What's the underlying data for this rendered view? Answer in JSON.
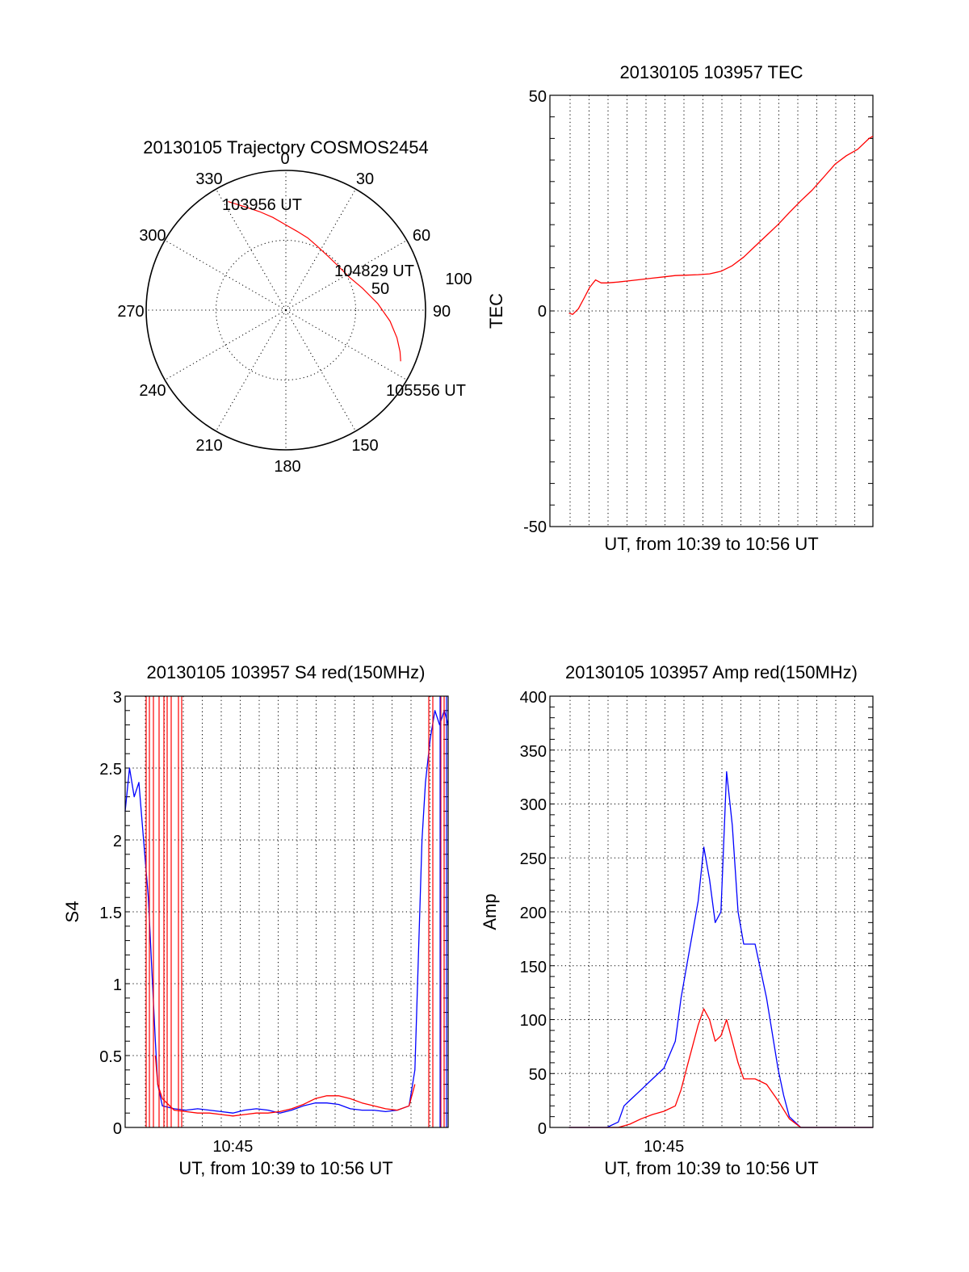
{
  "chart_data": [
    {
      "id": "trajectory",
      "type": "polar",
      "title": "20130105 Trajectory COSMOS2454",
      "azimuth_labels": [
        "0",
        "30",
        "60",
        "90",
        "150",
        "180",
        "210",
        "240",
        "270",
        "300",
        "330"
      ],
      "ring_labels": [
        "50",
        "100"
      ],
      "point_labels": [
        "103956 UT",
        "104829 UT",
        "105556 UT"
      ],
      "series": [
        {
          "color": "#ff0000",
          "points": [
            [
              332,
              88
            ],
            [
              338,
              80
            ],
            [
              345,
              73
            ],
            [
              352,
              67
            ],
            [
              0,
              61
            ],
            [
              8,
              57
            ],
            [
              17,
              54
            ],
            [
              26,
              51
            ],
            [
              38,
              49
            ],
            [
              50,
              49
            ],
            [
              62,
              51
            ],
            [
              74,
              57
            ],
            [
              86,
              66
            ],
            [
              96,
              75
            ],
            [
              104,
              82
            ],
            [
              110,
              87
            ],
            [
              114,
              90
            ]
          ]
        }
      ],
      "rlim": [
        0,
        100
      ]
    },
    {
      "id": "tec",
      "type": "line",
      "title": "20130105 103957 TEC",
      "xlabel": "UT, from 10:39 to 10:56 UT",
      "ylabel": "TEC",
      "yticks": [
        "50",
        "0",
        "-50"
      ],
      "ylim": [
        -50,
        50
      ],
      "xlim": [
        10.65,
        10.9333
      ],
      "series": [
        {
          "color": "#ff0000",
          "x": [
            10.6667,
            10.67,
            10.675,
            10.68,
            10.685,
            10.69,
            10.695,
            10.7,
            10.71,
            10.72,
            10.73,
            10.74,
            10.75,
            10.76,
            10.77,
            10.78,
            10.79,
            10.8,
            10.81,
            10.82,
            10.83,
            10.84,
            10.85,
            10.86,
            10.87,
            10.88,
            10.89,
            10.9,
            10.91,
            10.92,
            10.93,
            10.9333
          ],
          "y": [
            -0.5,
            -0.8,
            0.5,
            3,
            5.5,
            7.2,
            6.5,
            6.5,
            6.7,
            7,
            7.3,
            7.6,
            7.9,
            8.2,
            8.3,
            8.4,
            8.6,
            9.2,
            10.5,
            12.5,
            15,
            17.5,
            20,
            22.8,
            25.5,
            28,
            31,
            34,
            36,
            37.5,
            40,
            40.5
          ]
        }
      ]
    },
    {
      "id": "s4",
      "type": "line",
      "title": "20130105 103957 S4 red(150MHz)",
      "xlabel": "UT, from 10:39 to 10:56 UT",
      "ylabel": "S4",
      "xticks": [
        "10:45"
      ],
      "xtick_values": [
        10.75
      ],
      "yticks": [
        "0",
        "0.5",
        "1",
        "1.5",
        "2",
        "2.5",
        "3"
      ],
      "ylim": [
        0,
        3
      ],
      "xlim": [
        10.6583,
        10.9333
      ],
      "series": [
        {
          "color": "#0000ff",
          "x": [
            10.6583,
            10.662,
            10.666,
            10.67,
            10.674,
            10.678,
            10.681,
            10.684,
            10.686,
            10.69,
            10.7,
            10.71,
            10.72,
            10.73,
            10.74,
            10.75,
            10.76,
            10.77,
            10.78,
            10.79,
            10.8,
            10.81,
            10.82,
            10.83,
            10.84,
            10.85,
            10.86,
            10.87,
            10.88,
            10.89,
            10.9,
            10.905,
            10.908,
            10.911,
            10.914,
            10.918,
            10.922,
            10.926,
            10.93,
            10.9333
          ],
          "y": [
            2.2,
            2.5,
            2.3,
            2.4,
            2.0,
            1.6,
            1.1,
            0.6,
            0.3,
            0.15,
            0.13,
            0.12,
            0.13,
            0.12,
            0.11,
            0.1,
            0.12,
            0.13,
            0.12,
            0.1,
            0.12,
            0.15,
            0.17,
            0.17,
            0.16,
            0.13,
            0.12,
            0.12,
            0.11,
            0.12,
            0.15,
            0.4,
            1.2,
            2.0,
            2.4,
            2.7,
            2.9,
            2.8,
            2.9,
            2.8
          ]
        },
        {
          "color": "#ff0000",
          "x": [
            10.684,
            10.686,
            10.69,
            10.7,
            10.71,
            10.72,
            10.73,
            10.74,
            10.75,
            10.76,
            10.77,
            10.78,
            10.79,
            10.8,
            10.81,
            10.82,
            10.83,
            10.84,
            10.85,
            10.86,
            10.87,
            10.88,
            10.89,
            10.9,
            10.905
          ],
          "y": [
            0.5,
            0.3,
            0.2,
            0.12,
            0.11,
            0.1,
            0.1,
            0.09,
            0.08,
            0.09,
            0.1,
            0.1,
            0.11,
            0.13,
            0.16,
            0.2,
            0.22,
            0.22,
            0.2,
            0.17,
            0.15,
            0.13,
            0.12,
            0.15,
            0.3
          ]
        }
      ]
    },
    {
      "id": "amp",
      "type": "line",
      "title": "20130105 103957 Amp red(150MHz)",
      "xlabel": "UT, from 10:39 to 10:56 UT",
      "ylabel": "Amp",
      "xticks": [
        "10:45"
      ],
      "xtick_values": [
        10.75
      ],
      "yticks": [
        "0",
        "50",
        "100",
        "150",
        "200",
        "250",
        "300",
        "350",
        "400"
      ],
      "ylim": [
        0,
        400
      ],
      "xlim": [
        10.65,
        10.9333
      ],
      "series": [
        {
          "color": "#0000ff",
          "x": [
            10.6667,
            10.7,
            10.71,
            10.715,
            10.72,
            10.73,
            10.74,
            10.75,
            10.76,
            10.765,
            10.77,
            10.775,
            10.78,
            10.785,
            10.79,
            10.795,
            10.8,
            10.805,
            10.81,
            10.815,
            10.82,
            10.83,
            10.84,
            10.85,
            10.855,
            10.86,
            10.87,
            10.9333
          ],
          "y": [
            0,
            0,
            5,
            20,
            25,
            35,
            45,
            55,
            80,
            120,
            150,
            180,
            210,
            260,
            230,
            190,
            200,
            330,
            280,
            200,
            170,
            170,
            120,
            55,
            30,
            10,
            0,
            0
          ]
        },
        {
          "color": "#ff0000",
          "x": [
            10.6667,
            10.71,
            10.72,
            10.73,
            10.74,
            10.75,
            10.76,
            10.765,
            10.77,
            10.775,
            10.78,
            10.785,
            10.79,
            10.795,
            10.8,
            10.805,
            10.81,
            10.815,
            10.82,
            10.83,
            10.84,
            10.85,
            10.86,
            10.87,
            10.9333
          ],
          "y": [
            0,
            0,
            3,
            8,
            12,
            15,
            20,
            35,
            55,
            75,
            95,
            110,
            100,
            80,
            85,
            100,
            80,
            60,
            45,
            45,
            40,
            25,
            8,
            0,
            0
          ]
        }
      ]
    }
  ]
}
